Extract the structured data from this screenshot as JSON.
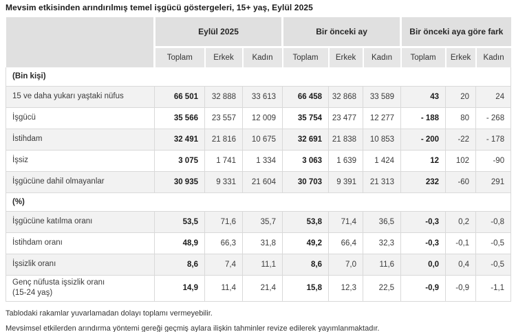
{
  "title": "Mevsim etkisinden arındırılmış temel işgücü göstergeleri, 15+ yaş, Eylül 2025",
  "chart_data": {
    "type": "table",
    "title": "Mevsim etkisinden arındırılmış temel işgücü göstergeleri, 15+ yaş, Eylül 2025",
    "column_groups": [
      "Eylül 2025",
      "Bir önceki ay",
      "Bir önceki aya göre fark"
    ],
    "columns": [
      "Toplam",
      "Erkek",
      "Kadın",
      "Toplam",
      "Erkek",
      "Kadın",
      "Toplam",
      "Erkek",
      "Kadın"
    ],
    "sections": [
      {
        "label": "(Bin kişi)",
        "rows": [
          {
            "label": "15 ve daha yukarı yaştaki nüfus",
            "values": [
              "66 501",
              "32 888",
              "33 613",
              "66 458",
              "32 868",
              "33 589",
              "43",
              "20",
              "24"
            ]
          },
          {
            "label": "İşgücü",
            "values": [
              "35 566",
              "23 557",
              "12 009",
              "35 754",
              "23 477",
              "12 277",
              "- 188",
              "80",
              "- 268"
            ]
          },
          {
            "label": "İstihdam",
            "values": [
              "32 491",
              "21 816",
              "10 675",
              "32 691",
              "21 838",
              "10 853",
              "- 200",
              "-22",
              "- 178"
            ]
          },
          {
            "label": "İşsiz",
            "values": [
              "3 075",
              "1 741",
              "1 334",
              "3 063",
              "1 639",
              "1 424",
              "12",
              "102",
              "-90"
            ]
          },
          {
            "label": "İşgücüne dahil olmayanlar",
            "values": [
              "30 935",
              "9 331",
              "21 604",
              "30 703",
              "9 391",
              "21 313",
              "232",
              "-60",
              "291"
            ]
          }
        ]
      },
      {
        "label": "(%)",
        "rows": [
          {
            "label": "İşgücüne katılma oranı",
            "values": [
              "53,5",
              "71,6",
              "35,7",
              "53,8",
              "71,4",
              "36,5",
              "-0,3",
              "0,2",
              "-0,8"
            ]
          },
          {
            "label": "İstihdam oranı",
            "values": [
              "48,9",
              "66,3",
              "31,8",
              "49,2",
              "66,4",
              "32,3",
              "-0,3",
              "-0,1",
              "-0,5"
            ]
          },
          {
            "label": "İşsizlik oranı",
            "values": [
              "8,6",
              "7,4",
              "11,1",
              "8,6",
              "7,0",
              "11,6",
              "0,0",
              "0,4",
              "-0,5"
            ]
          },
          {
            "label": "Genç nüfusta işsizlik oranı\n(15-24 yaş)",
            "values": [
              "14,9",
              "11,4",
              "21,4",
              "15,8",
              "12,3",
              "22,5",
              "-0,9",
              "-0,9",
              "-1,1"
            ]
          }
        ]
      }
    ]
  },
  "footnotes": [
    "Tablodaki rakamlar yuvarlamadan dolayı toplamı vermeyebilir.",
    "Mevsimsel etkilerden arındırma yöntemi gereği geçmiş aylara ilişkin tahminler revize edilerek yayımlanmaktadır."
  ],
  "colors": {
    "header_bg": "#e0e0e0",
    "subheader_bg": "#e6e6e6",
    "row_alt_bg": "#f2f2f2",
    "border": "#d9d9d9",
    "text": "#333333"
  }
}
